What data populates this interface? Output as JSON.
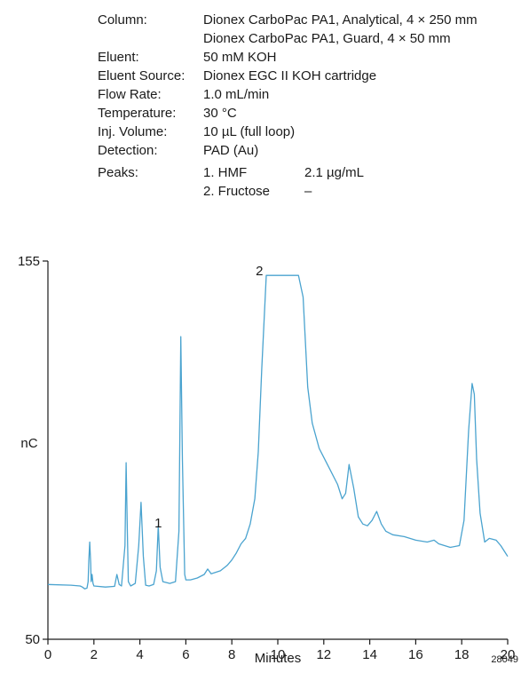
{
  "conditions": {
    "rows": [
      {
        "key": "Column:",
        "value": "Dionex CarboPac PA1, Analytical, 4 × 250 mm"
      },
      {
        "key": "",
        "value": "Dionex CarboPac PA1, Guard, 4 × 50 mm"
      },
      {
        "key": "Eluent:",
        "value": "50 mM KOH"
      },
      {
        "key": "Eluent Source:",
        "value": "Dionex EGC II KOH cartridge"
      },
      {
        "key": "Flow Rate:",
        "value": "1.0 mL/min"
      },
      {
        "key": "Temperature:",
        "value": "30 °C"
      },
      {
        "key": "Inj. Volume:",
        "value": "10 µL (full loop)"
      },
      {
        "key": "Detection:",
        "value": "PAD (Au)"
      }
    ],
    "peaks_key": "Peaks:",
    "peaks": [
      {
        "name": "1. HMF",
        "amount": "2.1 µg/mL"
      },
      {
        "name": "2. Fructose",
        "amount": "–"
      }
    ]
  },
  "figure_id": "28049",
  "chart_data": {
    "type": "line",
    "title": "",
    "xlabel": "Minutes",
    "ylabel": "nC",
    "xlim": [
      0,
      20
    ],
    "ylim": [
      50,
      155
    ],
    "x_ticks": [
      0,
      2,
      4,
      6,
      8,
      10,
      12,
      14,
      16,
      18,
      20
    ],
    "y_ticks": [
      50,
      155
    ],
    "line_color": "#4aa3cf",
    "peak_labels": [
      {
        "label": "1",
        "x": 4.8,
        "y": 81
      },
      {
        "label": "2",
        "x": 9.2,
        "y": 151
      }
    ],
    "series": [
      {
        "name": "",
        "x": [
          0,
          1.0,
          1.4,
          1.5,
          1.6,
          1.7,
          1.75,
          1.78,
          1.82,
          1.86,
          1.88,
          1.92,
          1.96,
          2.0,
          2.5,
          2.9,
          3.0,
          3.1,
          3.2,
          3.35,
          3.4,
          3.45,
          3.5,
          3.6,
          3.8,
          3.95,
          4.05,
          4.15,
          4.25,
          4.4,
          4.6,
          4.72,
          4.8,
          4.88,
          5.0,
          5.3,
          5.55,
          5.7,
          5.78,
          5.85,
          5.95,
          6.0,
          6.2,
          6.5,
          6.8,
          6.95,
          7.1,
          7.5,
          7.8,
          8.0,
          8.2,
          8.4,
          8.6,
          8.8,
          9.0,
          9.15,
          9.3,
          9.5,
          10.9,
          11.1,
          11.3,
          11.5,
          11.8,
          12.2,
          12.6,
          12.8,
          12.95,
          13.1,
          13.3,
          13.5,
          13.7,
          13.9,
          14.1,
          14.3,
          14.5,
          14.7,
          15.0,
          15.5,
          16.0,
          16.5,
          16.8,
          17.0,
          17.5,
          17.9,
          18.1,
          18.3,
          18.45,
          18.55,
          18.65,
          18.8,
          19.0,
          19.2,
          19.5,
          19.7,
          19.9,
          20.0
        ],
        "values": [
          65.2,
          65.0,
          64.8,
          64.5,
          64.0,
          64.2,
          66.0,
          72.0,
          77.0,
          71.0,
          66.0,
          68.0,
          65.5,
          64.8,
          64.5,
          64.7,
          68.0,
          65.2,
          64.8,
          76.0,
          99.0,
          81.0,
          66.0,
          64.8,
          65.5,
          76.0,
          88.0,
          73.0,
          65.0,
          64.8,
          65.2,
          69.0,
          81.5,
          70.0,
          66.0,
          65.5,
          66.0,
          80.0,
          134.0,
          100.0,
          68.0,
          66.5,
          66.5,
          67.0,
          68.0,
          69.5,
          68.2,
          69.0,
          70.5,
          72.0,
          74.0,
          76.5,
          78.0,
          82.0,
          89.0,
          102.0,
          125.0,
          151.0,
          151.0,
          145.0,
          120.0,
          110.0,
          103.0,
          98.0,
          93.0,
          89.0,
          90.5,
          98.5,
          92.0,
          84.0,
          82.0,
          81.5,
          83.0,
          85.5,
          82.0,
          80.0,
          79.0,
          78.5,
          77.5,
          77.0,
          77.5,
          76.5,
          75.5,
          76.0,
          83.0,
          108.0,
          121.0,
          118.0,
          100.0,
          85.0,
          77.0,
          78.0,
          77.5,
          76.0,
          74.0,
          73.0
        ]
      }
    ]
  }
}
